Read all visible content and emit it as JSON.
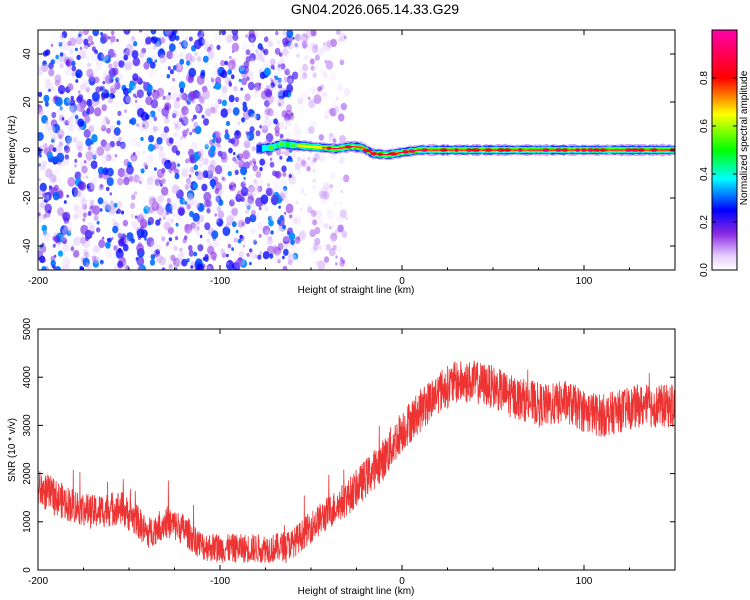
{
  "title": "GN04.2026.065.14.33.G29",
  "colors": {
    "snr_line": "#ee3333",
    "axis": "#000000",
    "background": "#ffffff"
  },
  "chart_data": [
    {
      "type": "heatmap",
      "xlabel": "Height of straight line (km)",
      "ylabel": "Frequency (Hz)",
      "xlim": [
        -200,
        150
      ],
      "ylim": [
        -50,
        50
      ],
      "x_ticks": [
        -200,
        -100,
        0,
        100
      ],
      "y_ticks": [
        -40,
        -20,
        0,
        20,
        40
      ],
      "colorbar": {
        "label": "Normalized spectral amplitude",
        "range": [
          0,
          1
        ],
        "ticks": [
          0.0,
          0.2,
          0.4,
          0.6,
          0.8
        ],
        "tick_labels": [
          "0.0",
          "0.2",
          "0.4",
          "0.6",
          "0.8"
        ],
        "colormap": "rainbow (white-violet-blue-cyan-green-yellow-red-magenta)"
      },
      "signal_track": [
        {
          "x": -80,
          "freq": 0.5,
          "amp": 0.35
        },
        {
          "x": -72,
          "freq": 1.0,
          "amp": 0.45
        },
        {
          "x": -66,
          "freq": 2.5,
          "amp": 0.55
        },
        {
          "x": -60,
          "freq": 2.0,
          "amp": 0.7
        },
        {
          "x": -52,
          "freq": 1.5,
          "amp": 0.8
        },
        {
          "x": -44,
          "freq": 1.0,
          "amp": 0.85
        },
        {
          "x": -36,
          "freq": 0.5,
          "amp": 0.9
        },
        {
          "x": -28,
          "freq": 1.5,
          "amp": 0.9
        },
        {
          "x": -22,
          "freq": 1.0,
          "amp": 0.9
        },
        {
          "x": -16,
          "freq": -1.5,
          "amp": 0.95
        },
        {
          "x": -8,
          "freq": -2.0,
          "amp": 0.95
        },
        {
          "x": 0,
          "freq": -1.0,
          "amp": 0.95
        },
        {
          "x": 10,
          "freq": 0.0,
          "amp": 0.95
        },
        {
          "x": 30,
          "freq": 0.0,
          "amp": 0.95
        },
        {
          "x": 60,
          "freq": 0.0,
          "amp": 0.95
        },
        {
          "x": 90,
          "freq": 0.0,
          "amp": 0.95
        },
        {
          "x": 120,
          "freq": 0.0,
          "amp": 0.95
        },
        {
          "x": 150,
          "freq": 0.0,
          "amp": 0.95
        }
      ],
      "noise_region": {
        "x_from": -200,
        "x_to": -58,
        "amp_range": [
          0.0,
          0.3
        ]
      },
      "sparse_noise_region": {
        "x_from": -58,
        "x_to": -30,
        "amp_range": [
          0.0,
          0.12
        ]
      }
    },
    {
      "type": "line",
      "xlabel": "Height of straight line (km)",
      "ylabel": "SNR (10 * v/v)",
      "xlim": [
        -200,
        150
      ],
      "ylim": [
        0,
        5000
      ],
      "x_ticks": [
        -200,
        -100,
        0,
        100
      ],
      "y_ticks": [
        0,
        1000,
        2000,
        3000,
        4000,
        5000
      ],
      "series": [
        {
          "envelope_x": [
            -200,
            -185,
            -170,
            -155,
            -145,
            -140,
            -130,
            -120,
            -110,
            -100,
            -90,
            -80,
            -70,
            -60,
            -50,
            -40,
            -30,
            -20,
            -10,
            0,
            10,
            20,
            30,
            40,
            50,
            60,
            70,
            80,
            90,
            100,
            110,
            120,
            130,
            140,
            150
          ],
          "envelope_y": [
            1700,
            1400,
            1200,
            1300,
            1000,
            750,
            1000,
            850,
            500,
            450,
            450,
            450,
            450,
            550,
            900,
            1200,
            1500,
            1900,
            2300,
            2900,
            3300,
            3700,
            3900,
            3900,
            3800,
            3600,
            3500,
            3400,
            3500,
            3300,
            3200,
            3300,
            3400,
            3400,
            3400
          ],
          "noise_amplitude": 450
        }
      ]
    }
  ]
}
